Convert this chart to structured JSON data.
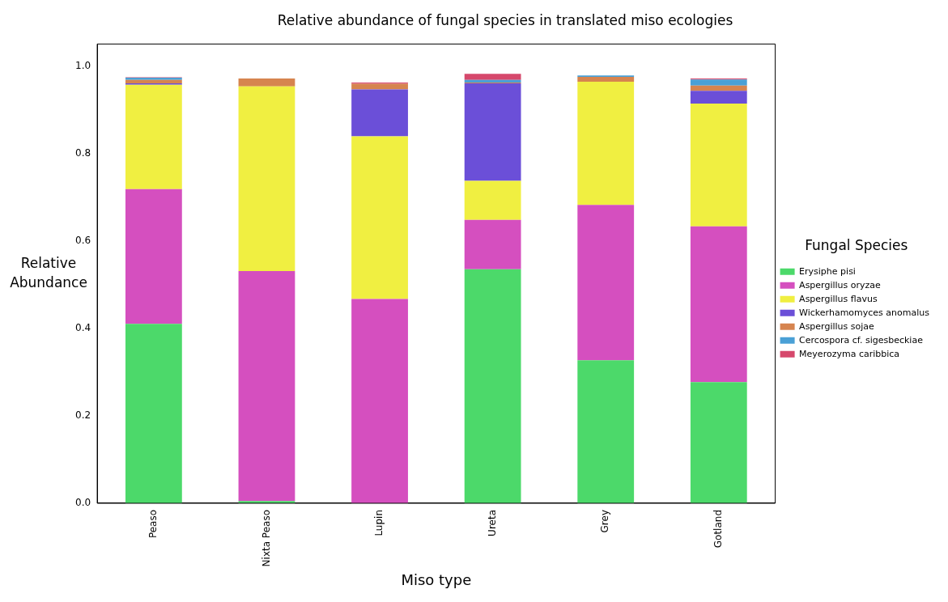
{
  "chart_data": {
    "type": "bar",
    "title": "Relative abundance of fungal species in translated miso ecologies",
    "xlabel": "Miso type",
    "ylabel": "Relative Abundance",
    "legend_title": "Fungal Species",
    "categories": [
      "Peaso",
      "Nixta Peaso",
      "Lupin",
      "Ureta",
      "Grey",
      "Gotland"
    ],
    "stacked": true,
    "legend": "right",
    "grid": false,
    "ylim": [
      0,
      1.05
    ],
    "yticks": [
      {
        "value": 0,
        "label": "0.0"
      },
      {
        "value": 0.2,
        "label": "0.2"
      },
      {
        "value": 0.4,
        "label": "0.4"
      },
      {
        "value": 0.6,
        "label": "0.6"
      },
      {
        "value": 0.8,
        "label": "0.8"
      },
      {
        "value": 1,
        "label": "1.0"
      }
    ],
    "series": [
      {
        "name": "Erysiphe pisi",
        "color": "#4cd96a",
        "values": [
          0.41,
          0.005,
          0,
          0.535,
          0.327,
          0.277
        ]
      },
      {
        "name": "Aspergillus oryzae",
        "color": "#d54fbf",
        "values": [
          0.308,
          0.526,
          0.467,
          0.113,
          0.355,
          0.356
        ]
      },
      {
        "name": "Aspergillus flavus",
        "color": "#f0ef41",
        "values": [
          0.239,
          0.422,
          0.372,
          0.089,
          0.282,
          0.281
        ]
      },
      {
        "name": "Wickerhamomyces anomalus",
        "color": "#6b4fd8",
        "values": [
          0.003,
          0,
          0.107,
          0.223,
          0,
          0.029
        ]
      },
      {
        "name": "Aspergillus sojae",
        "color": "#d6844f",
        "values": [
          0.008,
          0.018,
          0.013,
          0.002,
          0.011,
          0.012
        ]
      },
      {
        "name": "Cercospora cf. sigesbeckiae",
        "color": "#4aa0d6",
        "values": [
          0.005,
          0,
          0,
          0.006,
          0.003,
          0.014
        ]
      },
      {
        "name": "Meyerozyma caribbica",
        "color": "#d6486c",
        "values": [
          0.001,
          0,
          0.003,
          0.014,
          0,
          0.002
        ]
      }
    ]
  }
}
